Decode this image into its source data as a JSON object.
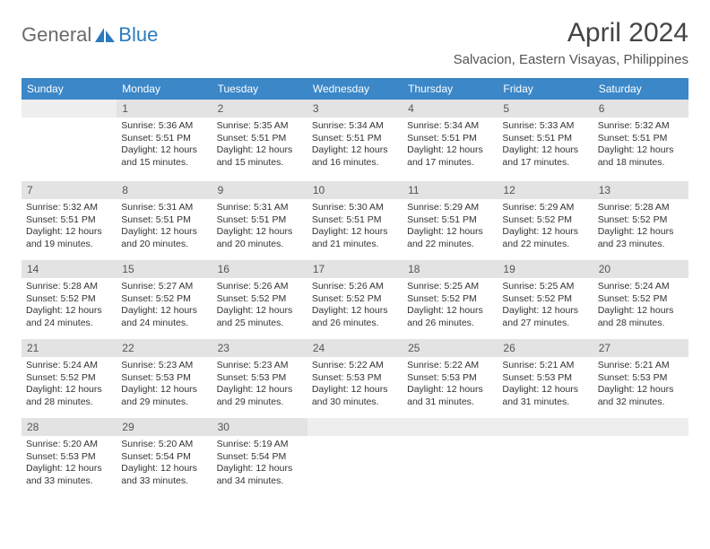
{
  "logo": {
    "text1": "General",
    "text2": "Blue"
  },
  "title": "April 2024",
  "location": "Salvacion, Eastern Visayas, Philippines",
  "colors": {
    "header_bg": "#3b87c8",
    "header_text": "#ffffff",
    "daynum_bg": "#e3e3e3",
    "text": "#333333",
    "logo_gray": "#6a6a6a",
    "logo_blue": "#2b7bbf"
  },
  "weekdays": [
    "Sunday",
    "Monday",
    "Tuesday",
    "Wednesday",
    "Thursday",
    "Friday",
    "Saturday"
  ],
  "weeks": [
    [
      null,
      {
        "n": "1",
        "sr": "5:36 AM",
        "ss": "5:51 PM",
        "dl": "12 hours and 15 minutes."
      },
      {
        "n": "2",
        "sr": "5:35 AM",
        "ss": "5:51 PM",
        "dl": "12 hours and 15 minutes."
      },
      {
        "n": "3",
        "sr": "5:34 AM",
        "ss": "5:51 PM",
        "dl": "12 hours and 16 minutes."
      },
      {
        "n": "4",
        "sr": "5:34 AM",
        "ss": "5:51 PM",
        "dl": "12 hours and 17 minutes."
      },
      {
        "n": "5",
        "sr": "5:33 AM",
        "ss": "5:51 PM",
        "dl": "12 hours and 17 minutes."
      },
      {
        "n": "6",
        "sr": "5:32 AM",
        "ss": "5:51 PM",
        "dl": "12 hours and 18 minutes."
      }
    ],
    [
      {
        "n": "7",
        "sr": "5:32 AM",
        "ss": "5:51 PM",
        "dl": "12 hours and 19 minutes."
      },
      {
        "n": "8",
        "sr": "5:31 AM",
        "ss": "5:51 PM",
        "dl": "12 hours and 20 minutes."
      },
      {
        "n": "9",
        "sr": "5:31 AM",
        "ss": "5:51 PM",
        "dl": "12 hours and 20 minutes."
      },
      {
        "n": "10",
        "sr": "5:30 AM",
        "ss": "5:51 PM",
        "dl": "12 hours and 21 minutes."
      },
      {
        "n": "11",
        "sr": "5:29 AM",
        "ss": "5:51 PM",
        "dl": "12 hours and 22 minutes."
      },
      {
        "n": "12",
        "sr": "5:29 AM",
        "ss": "5:52 PM",
        "dl": "12 hours and 22 minutes."
      },
      {
        "n": "13",
        "sr": "5:28 AM",
        "ss": "5:52 PM",
        "dl": "12 hours and 23 minutes."
      }
    ],
    [
      {
        "n": "14",
        "sr": "5:28 AM",
        "ss": "5:52 PM",
        "dl": "12 hours and 24 minutes."
      },
      {
        "n": "15",
        "sr": "5:27 AM",
        "ss": "5:52 PM",
        "dl": "12 hours and 24 minutes."
      },
      {
        "n": "16",
        "sr": "5:26 AM",
        "ss": "5:52 PM",
        "dl": "12 hours and 25 minutes."
      },
      {
        "n": "17",
        "sr": "5:26 AM",
        "ss": "5:52 PM",
        "dl": "12 hours and 26 minutes."
      },
      {
        "n": "18",
        "sr": "5:25 AM",
        "ss": "5:52 PM",
        "dl": "12 hours and 26 minutes."
      },
      {
        "n": "19",
        "sr": "5:25 AM",
        "ss": "5:52 PM",
        "dl": "12 hours and 27 minutes."
      },
      {
        "n": "20",
        "sr": "5:24 AM",
        "ss": "5:52 PM",
        "dl": "12 hours and 28 minutes."
      }
    ],
    [
      {
        "n": "21",
        "sr": "5:24 AM",
        "ss": "5:52 PM",
        "dl": "12 hours and 28 minutes."
      },
      {
        "n": "22",
        "sr": "5:23 AM",
        "ss": "5:53 PM",
        "dl": "12 hours and 29 minutes."
      },
      {
        "n": "23",
        "sr": "5:23 AM",
        "ss": "5:53 PM",
        "dl": "12 hours and 29 minutes."
      },
      {
        "n": "24",
        "sr": "5:22 AM",
        "ss": "5:53 PM",
        "dl": "12 hours and 30 minutes."
      },
      {
        "n": "25",
        "sr": "5:22 AM",
        "ss": "5:53 PM",
        "dl": "12 hours and 31 minutes."
      },
      {
        "n": "26",
        "sr": "5:21 AM",
        "ss": "5:53 PM",
        "dl": "12 hours and 31 minutes."
      },
      {
        "n": "27",
        "sr": "5:21 AM",
        "ss": "5:53 PM",
        "dl": "12 hours and 32 minutes."
      }
    ],
    [
      {
        "n": "28",
        "sr": "5:20 AM",
        "ss": "5:53 PM",
        "dl": "12 hours and 33 minutes."
      },
      {
        "n": "29",
        "sr": "5:20 AM",
        "ss": "5:54 PM",
        "dl": "12 hours and 33 minutes."
      },
      {
        "n": "30",
        "sr": "5:19 AM",
        "ss": "5:54 PM",
        "dl": "12 hours and 34 minutes."
      },
      null,
      null,
      null,
      null
    ]
  ],
  "labels": {
    "sunrise": "Sunrise:",
    "sunset": "Sunset:",
    "daylight": "Daylight:"
  }
}
